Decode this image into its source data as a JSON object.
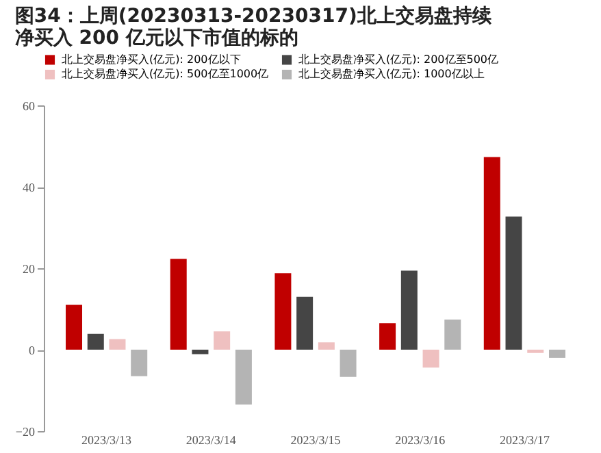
{
  "chart_data": {
    "type": "bar",
    "title": [
      "图34：上周(20230313-20230317)北上交易盘持续",
      "净买入 200 亿元以下市值的标的"
    ],
    "categories": [
      "2023/3/13",
      "2023/3/14",
      "2023/3/15",
      "2023/3/16",
      "2023/3/17"
    ],
    "series": [
      {
        "name": "北上交易盘净买入(亿元): 200亿以下",
        "color": "#c00000",
        "values": [
          11,
          22.3,
          18.8,
          6.5,
          47.3
        ]
      },
      {
        "name": "北上交易盘净买入(亿元): 200亿至500亿",
        "color": "#454545",
        "values": [
          3.9,
          -1.1,
          13,
          19.4,
          32.7
        ]
      },
      {
        "name": "北上交易盘净买入(亿元): 500亿至1000亿",
        "color": "#efc0c0",
        "values": [
          2.6,
          4.5,
          1.8,
          -4.4,
          -0.8
        ]
      },
      {
        "name": "北上交易盘净买入(亿元): 1000亿以上",
        "color": "#b4b4b4",
        "values": [
          -6.5,
          -13.5,
          -6.7,
          7.4,
          -2
        ]
      }
    ],
    "ylim": [
      -20,
      60
    ],
    "yticks": [
      -20,
      0,
      20,
      40,
      60
    ],
    "grid": false,
    "legend": "top"
  }
}
